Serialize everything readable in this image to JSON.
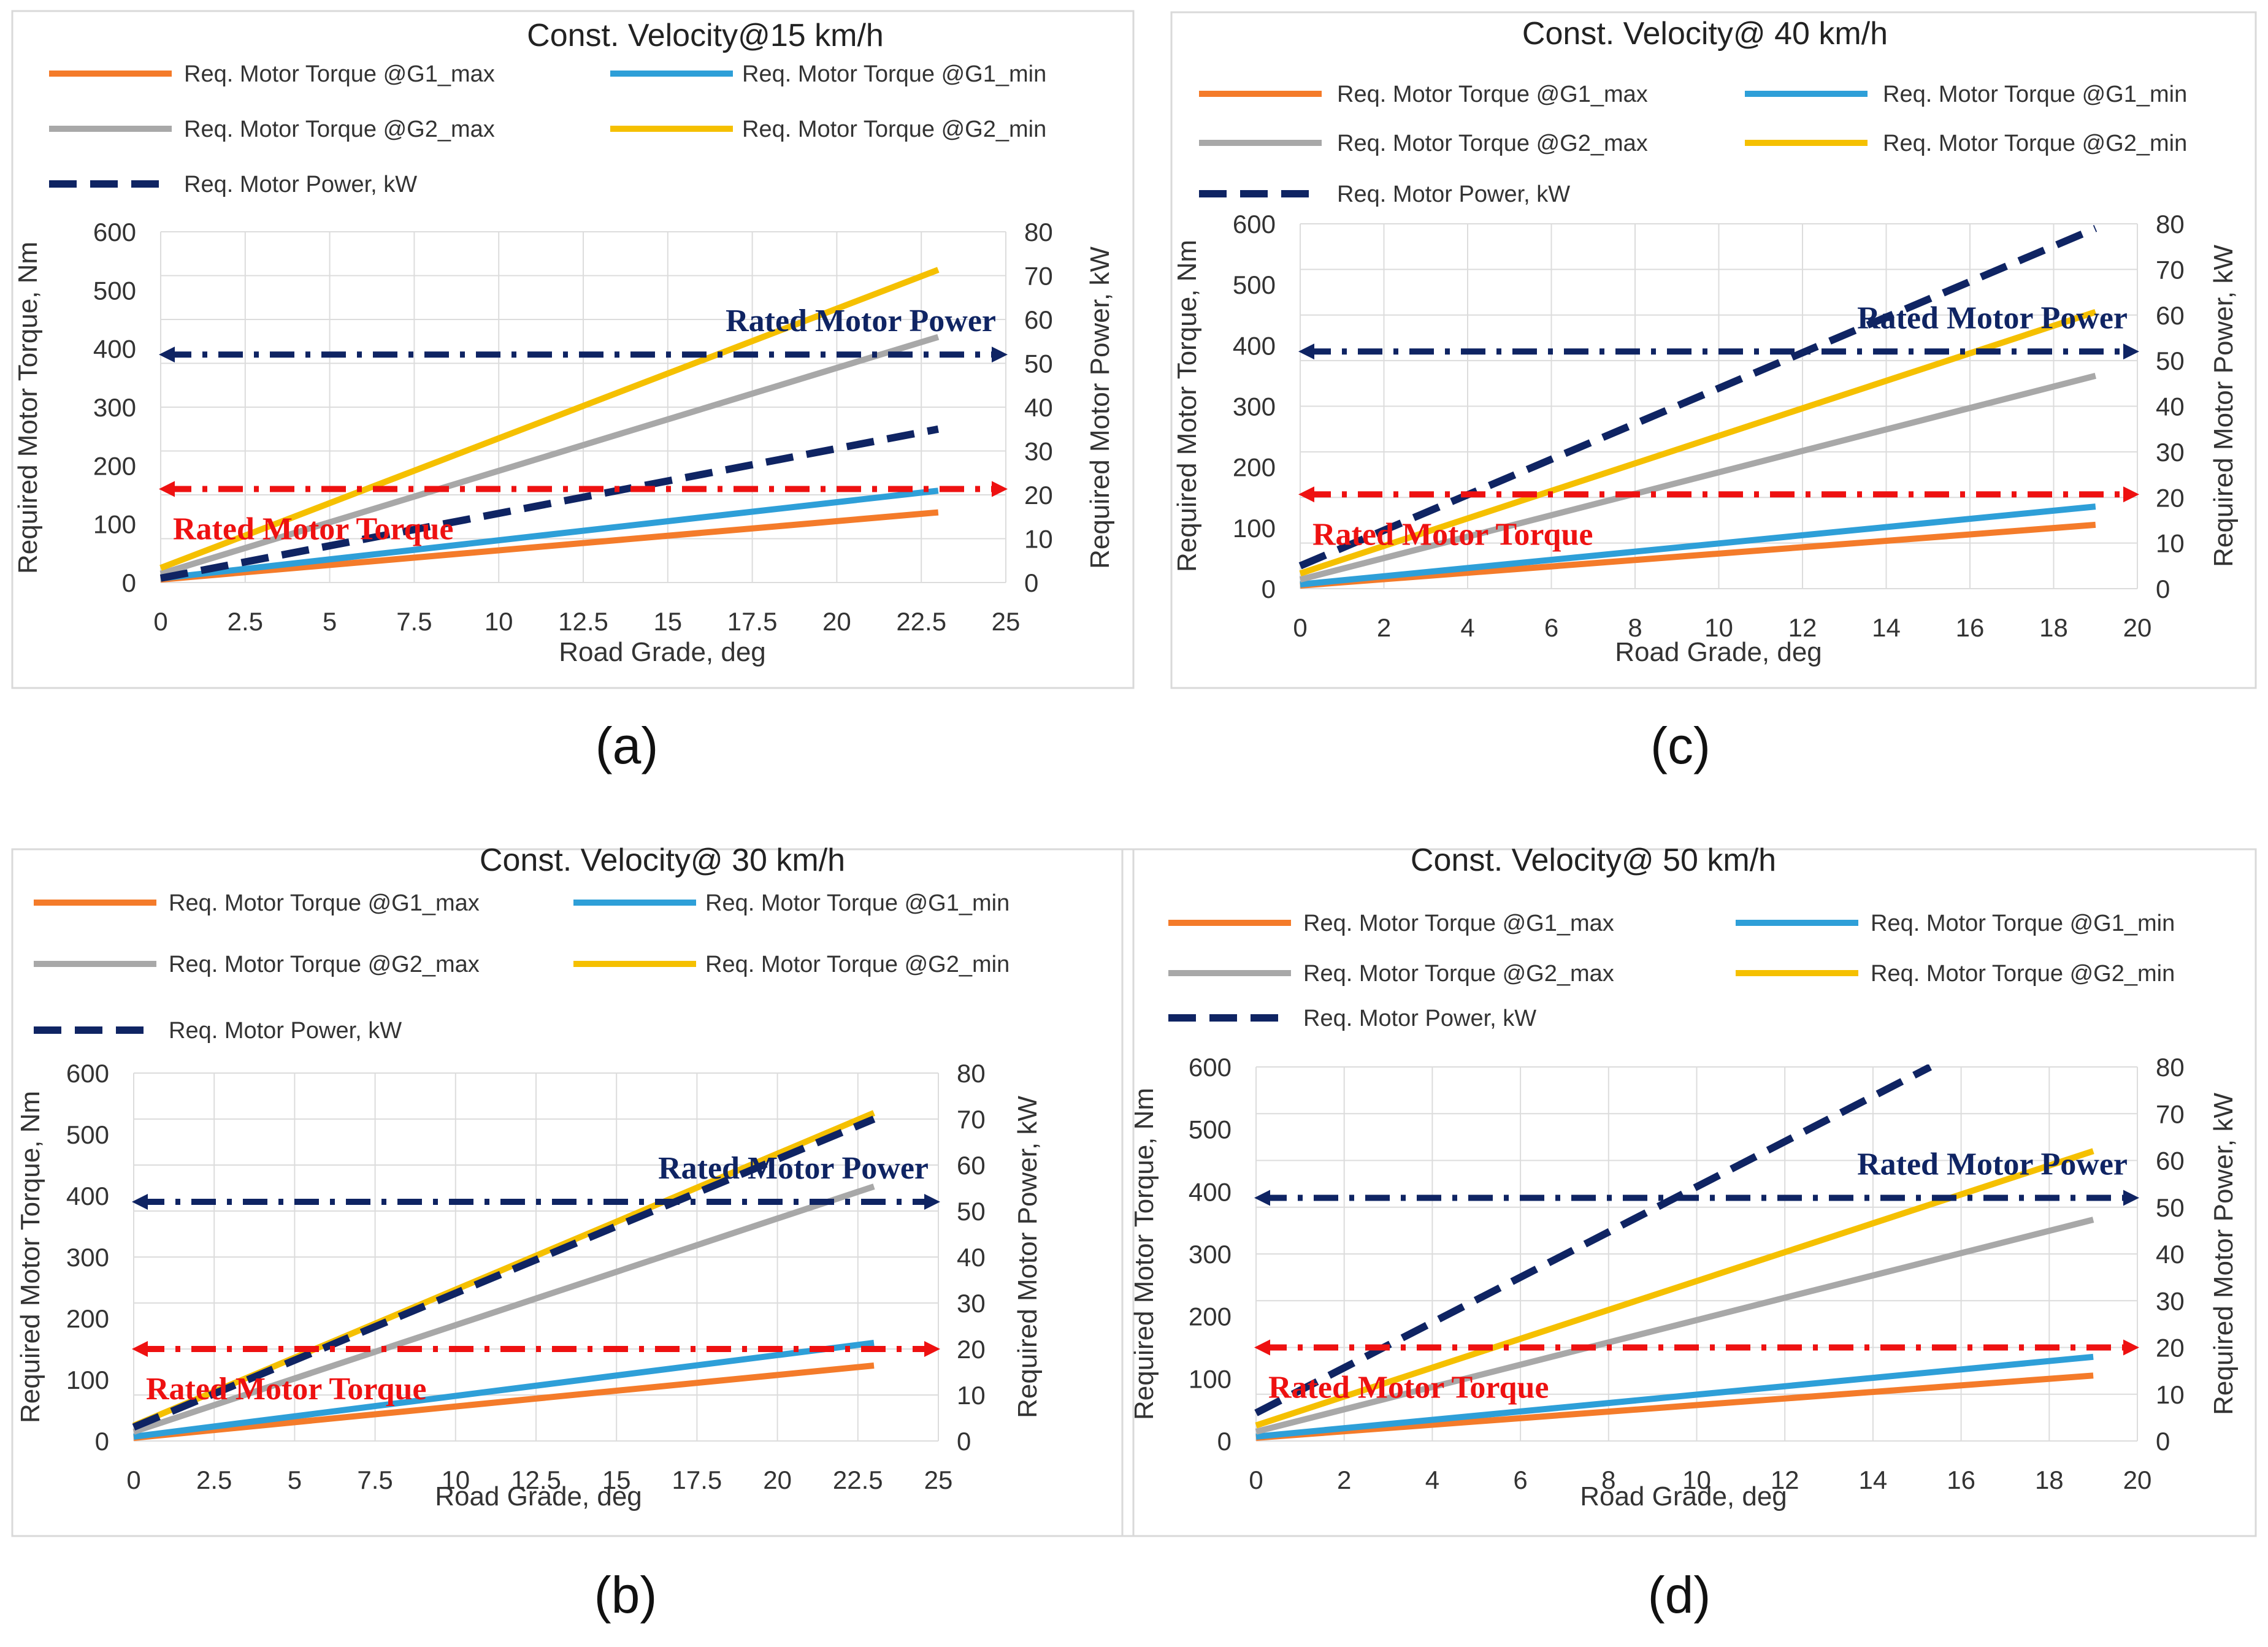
{
  "colors": {
    "g1_max": "#F47B2A",
    "g1_min": "#2E9FD8",
    "g2_max": "#A8A8A8",
    "g2_min": "#F5C000",
    "power": "#0F2463",
    "rated_power": "#0F2463",
    "rated_torque": "#EE1111",
    "frame": "#D9D9D9",
    "grid": "#DCDCDC",
    "text": "#333333"
  },
  "chart_data": [
    {
      "id": "a",
      "panel_label": "(a)",
      "type": "line",
      "title": "Const. Velocity@15 km/h",
      "xlabel": "Road Grade, deg",
      "ylabel_left": "Required Motor Torque, Nm",
      "ylabel_right": "Required Motor Power, kW",
      "xlim": [
        0,
        25
      ],
      "xticks": [
        "0",
        "2.5",
        "5",
        "7.5",
        "10",
        "12.5",
        "15",
        "17.5",
        "20",
        "22.5",
        "25"
      ],
      "ylim_left": [
        0,
        600
      ],
      "yticks_left": [
        "0",
        "100",
        "200",
        "300",
        "400",
        "500",
        "600"
      ],
      "ylim_right": [
        0,
        80
      ],
      "yticks_right": [
        "0",
        "10",
        "20",
        "30",
        "40",
        "50",
        "60",
        "70",
        "80"
      ],
      "legend": {
        "g1_max": "Req. Motor Torque @G1_max",
        "g1_min": "Req. Motor Torque @G1_min",
        "g2_max": "Req. Motor Torque @G2_max",
        "g2_min": "Req. Motor Torque @G2_min",
        "power": "Req. Motor Power, kW"
      },
      "series": [
        {
          "key": "g1_max",
          "axis": "left",
          "x": [
            0,
            23
          ],
          "y": [
            5,
            120
          ]
        },
        {
          "key": "g1_min",
          "axis": "left",
          "x": [
            0,
            23
          ],
          "y": [
            7,
            157
          ]
        },
        {
          "key": "g2_max",
          "axis": "left",
          "x": [
            0,
            23
          ],
          "y": [
            15,
            420
          ]
        },
        {
          "key": "g2_min",
          "axis": "left",
          "x": [
            0,
            23
          ],
          "y": [
            25,
            535
          ]
        },
        {
          "key": "power",
          "axis": "right",
          "x": [
            0,
            23
          ],
          "y": [
            1,
            35
          ]
        }
      ],
      "rated_power": {
        "label": "Rated Motor Power",
        "value_left": 390
      },
      "rated_torque": {
        "label": "Rated Motor Torque",
        "value_left": 160
      }
    },
    {
      "id": "b",
      "panel_label": "(b)",
      "type": "line",
      "title": "Const. Velocity@ 30 km/h",
      "xlabel": "Road Grade, deg",
      "ylabel_left": "Required Motor Torque, Nm",
      "ylabel_right": "Required Motor Power, kW",
      "xlim": [
        0,
        25
      ],
      "xticks": [
        "0",
        "2.5",
        "5",
        "7.5",
        "10",
        "12.5",
        "15",
        "17.5",
        "20",
        "22.5",
        "25"
      ],
      "ylim_left": [
        0,
        600
      ],
      "yticks_left": [
        "0",
        "100",
        "200",
        "300",
        "400",
        "500",
        "600"
      ],
      "ylim_right": [
        0,
        80
      ],
      "yticks_right": [
        "0",
        "10",
        "20",
        "30",
        "40",
        "50",
        "60",
        "70",
        "80"
      ],
      "legend": {
        "g1_max": "Req. Motor Torque @G1_max",
        "g1_min": "Req. Motor Torque @G1_min",
        "g2_max": "Req. Motor Torque @G2_max",
        "g2_min": "Req. Motor Torque @G2_min",
        "power": "Req. Motor Power, kW"
      },
      "series": [
        {
          "key": "g1_max",
          "axis": "left",
          "x": [
            0,
            23
          ],
          "y": [
            5,
            123
          ]
        },
        {
          "key": "g1_min",
          "axis": "left",
          "x": [
            0,
            23
          ],
          "y": [
            7,
            160
          ]
        },
        {
          "key": "g2_max",
          "axis": "left",
          "x": [
            0,
            23
          ],
          "y": [
            15,
            415
          ]
        },
        {
          "key": "g2_min",
          "axis": "left",
          "x": [
            0,
            23
          ],
          "y": [
            25,
            535
          ]
        },
        {
          "key": "power",
          "axis": "right",
          "x": [
            0,
            23
          ],
          "y": [
            3,
            70
          ]
        }
      ],
      "rated_power": {
        "label": "Rated Motor Power",
        "value_left": 390
      },
      "rated_torque": {
        "label": "Rated Motor Torque",
        "value_left": 150
      }
    },
    {
      "id": "c",
      "panel_label": "(c)",
      "type": "line",
      "title": "Const. Velocity@ 40 km/h",
      "xlabel": "Road Grade, deg",
      "ylabel_left": "Required Motor Torque, Nm",
      "ylabel_right": "Required Motor Power, kW",
      "xlim": [
        0,
        20
      ],
      "xticks": [
        "0",
        "2",
        "4",
        "6",
        "8",
        "10",
        "12",
        "14",
        "16",
        "18",
        "20"
      ],
      "ylim_left": [
        0,
        600
      ],
      "yticks_left": [
        "0",
        "100",
        "200",
        "300",
        "400",
        "500",
        "600"
      ],
      "ylim_right": [
        0,
        80
      ],
      "yticks_right": [
        "0",
        "10",
        "20",
        "30",
        "40",
        "50",
        "60",
        "70",
        "80"
      ],
      "legend": {
        "g1_max": "Req. Motor Torque @G1_max",
        "g1_min": "Req. Motor Torque @G1_min",
        "g2_max": "Req. Motor Torque @G2_max",
        "g2_min": "Req. Motor Torque @G2_min",
        "power": "Req. Motor Power, kW"
      },
      "series": [
        {
          "key": "g1_max",
          "axis": "left",
          "x": [
            0,
            19
          ],
          "y": [
            5,
            105
          ]
        },
        {
          "key": "g1_min",
          "axis": "left",
          "x": [
            0,
            19
          ],
          "y": [
            7,
            135
          ]
        },
        {
          "key": "g2_max",
          "axis": "left",
          "x": [
            0,
            19
          ],
          "y": [
            15,
            350
          ]
        },
        {
          "key": "g2_min",
          "axis": "left",
          "x": [
            0,
            19
          ],
          "y": [
            25,
            455
          ]
        },
        {
          "key": "power",
          "axis": "right",
          "x": [
            0,
            19
          ],
          "y": [
            5,
            79
          ]
        }
      ],
      "rated_power": {
        "label": "Rated Motor Power",
        "value_left": 390
      },
      "rated_torque": {
        "label": "Rated Motor Torque",
        "value_left": 155
      }
    },
    {
      "id": "d",
      "panel_label": "(d)",
      "type": "line",
      "title": "Const. Velocity@ 50 km/h",
      "xlabel": "Road Grade, deg",
      "ylabel_left": "Required Motor Torque, Nm",
      "ylabel_right": "Required Motor Power, kW",
      "xlim": [
        0,
        20
      ],
      "xticks": [
        "0",
        "2",
        "4",
        "6",
        "8",
        "10",
        "12",
        "14",
        "16",
        "18",
        "20"
      ],
      "ylim_left": [
        0,
        600
      ],
      "yticks_left": [
        "0",
        "100",
        "200",
        "300",
        "400",
        "500",
        "600"
      ],
      "ylim_right": [
        0,
        80
      ],
      "yticks_right": [
        "0",
        "10",
        "20",
        "30",
        "40",
        "50",
        "60",
        "70",
        "80"
      ],
      "legend": {
        "g1_max": "Req. Motor Torque @G1_max",
        "g1_min": "Req. Motor Torque @G1_min",
        "g2_max": "Req. Motor Torque @G2_max",
        "g2_min": "Req. Motor Torque @G2_min",
        "power": "Req. Motor Power, kW"
      },
      "series": [
        {
          "key": "g1_max",
          "axis": "left",
          "x": [
            0,
            19
          ],
          "y": [
            5,
            105
          ]
        },
        {
          "key": "g1_min",
          "axis": "left",
          "x": [
            0,
            19
          ],
          "y": [
            7,
            135
          ]
        },
        {
          "key": "g2_max",
          "axis": "left",
          "x": [
            0,
            19
          ],
          "y": [
            15,
            355
          ]
        },
        {
          "key": "g2_min",
          "axis": "left",
          "x": [
            0,
            19
          ],
          "y": [
            25,
            465
          ]
        },
        {
          "key": "power",
          "axis": "right",
          "x": [
            0,
            15.3
          ],
          "y": [
            6,
            80
          ]
        }
      ],
      "rated_power": {
        "label": "Rated Motor Power",
        "value_left": 390
      },
      "rated_torque": {
        "label": "Rated Motor Torque",
        "value_left": 150
      }
    }
  ]
}
